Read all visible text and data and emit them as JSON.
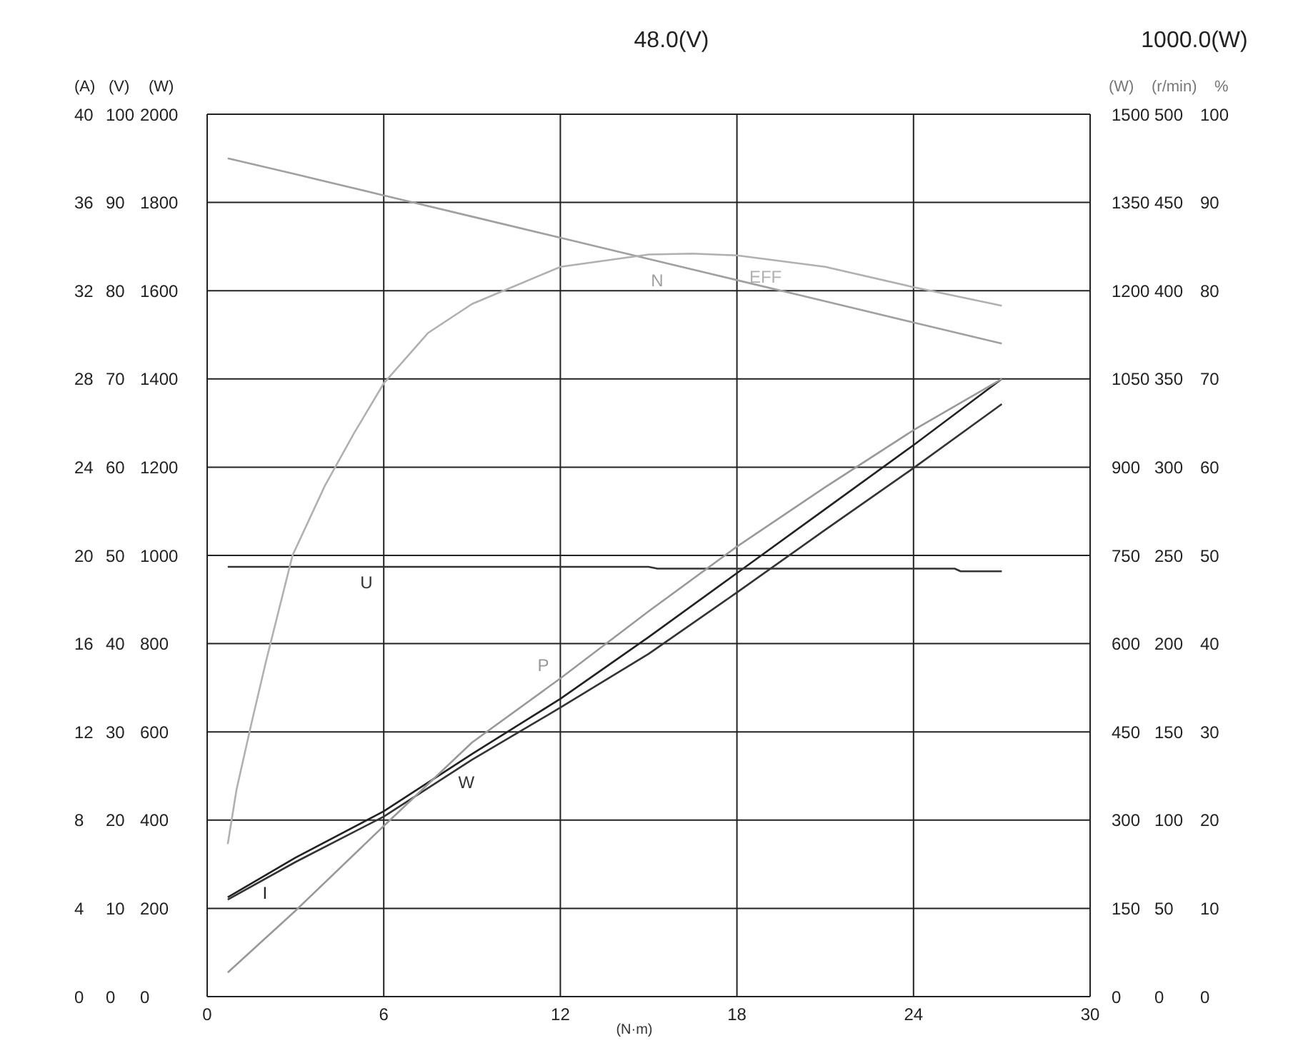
{
  "chart_data": [
    {
      "type": "line",
      "annotations": [
        "48.0(V)",
        "1000.0(W)"
      ],
      "xlabel": "(N·m)",
      "ylabel": "(W)",
      "y2label": "(V)",
      "y3label": "(A)",
      "xlim": [
        0,
        30
      ],
      "xticks": [
        0,
        6,
        12,
        18,
        24,
        30
      ],
      "ylim": [
        0,
        2000
      ],
      "yticks": [
        0,
        200,
        400,
        600,
        800,
        1000,
        1200,
        1400,
        1600,
        1800,
        2000
      ],
      "y2lim": [
        0,
        100
      ],
      "y2ticks": [
        0,
        10,
        20,
        30,
        40,
        50,
        60,
        70,
        80,
        90,
        100
      ],
      "y3lim": [
        0,
        40
      ],
      "y3ticks": [
        0,
        4,
        8,
        12,
        16,
        20,
        24,
        28,
        32,
        36,
        40
      ],
      "grid": true,
      "series": [
        {
          "name": "I",
          "color": "#222222",
          "axis": "y3",
          "x": [
            0.7,
            3,
            6,
            9,
            12,
            15,
            18,
            21,
            24,
            27
          ],
          "values": [
            4.5,
            6.3,
            8.4,
            11.0,
            13.5,
            16.3,
            19.2,
            22.1,
            25.0,
            28.0
          ]
        },
        {
          "name": "U",
          "color": "#333333",
          "axis": "y2",
          "x": [
            0.7,
            15,
            15.3,
            25.4,
            25.6,
            27
          ],
          "values": [
            48.7,
            48.7,
            48.5,
            48.5,
            48.2,
            48.2
          ]
        },
        {
          "name": "W",
          "color": "#333333",
          "x": [
            0.7,
            3,
            6,
            9,
            12,
            15,
            18,
            21,
            24,
            27
          ],
          "values": [
            220,
            305,
            408,
            537,
            655,
            777,
            916,
            1058,
            1198,
            1343
          ]
        }
      ]
    },
    {
      "type": "line",
      "ylabel": "(W)",
      "y2label": "(r/min)",
      "y3label": "%",
      "tick_labels": "y",
      "xlim": [
        0,
        30
      ],
      "ylim": [
        0,
        1500
      ],
      "yticks": [
        0,
        150,
        300,
        450,
        600,
        750,
        900,
        1050,
        1200,
        1350,
        1500
      ],
      "y2lim": [
        0,
        500
      ],
      "y2ticks": [
        0,
        50,
        100,
        150,
        200,
        250,
        300,
        350,
        400,
        450,
        500
      ],
      "y3lim": [
        0,
        100
      ],
      "y3ticks": [
        0,
        10,
        20,
        30,
        40,
        50,
        60,
        70,
        80,
        90,
        100
      ],
      "series": [
        {
          "name": "P",
          "color": "#999999",
          "x": [
            0.7,
            3,
            6,
            9,
            12,
            15,
            18,
            21,
            24,
            27
          ],
          "values": [
            41,
            146,
            290,
            432,
            541,
            655,
            765,
            866,
            963,
            1050
          ]
        },
        {
          "name": "N",
          "color": "#a0a0a0",
          "axis": "y2",
          "x": [
            0.7,
            3,
            6,
            9,
            12,
            15,
            18,
            21,
            24,
            27
          ],
          "values": [
            475,
            466,
            454,
            442,
            430,
            418,
            406,
            394,
            382,
            370
          ]
        },
        {
          "name": "EFF",
          "color": "#b0b0b0",
          "axis": "y3",
          "x": [
            0.7,
            1,
            1.5,
            2,
            2.9,
            4,
            5,
            6,
            7.5,
            9,
            12,
            15,
            16.5,
            18,
            21,
            24,
            27
          ],
          "values": [
            17.3,
            23.5,
            30.9,
            38,
            50,
            57.9,
            63.9,
            69.5,
            75.2,
            78.5,
            82.7,
            84.1,
            84.2,
            84,
            82.7,
            80.4,
            78.3
          ]
        }
      ]
    }
  ]
}
